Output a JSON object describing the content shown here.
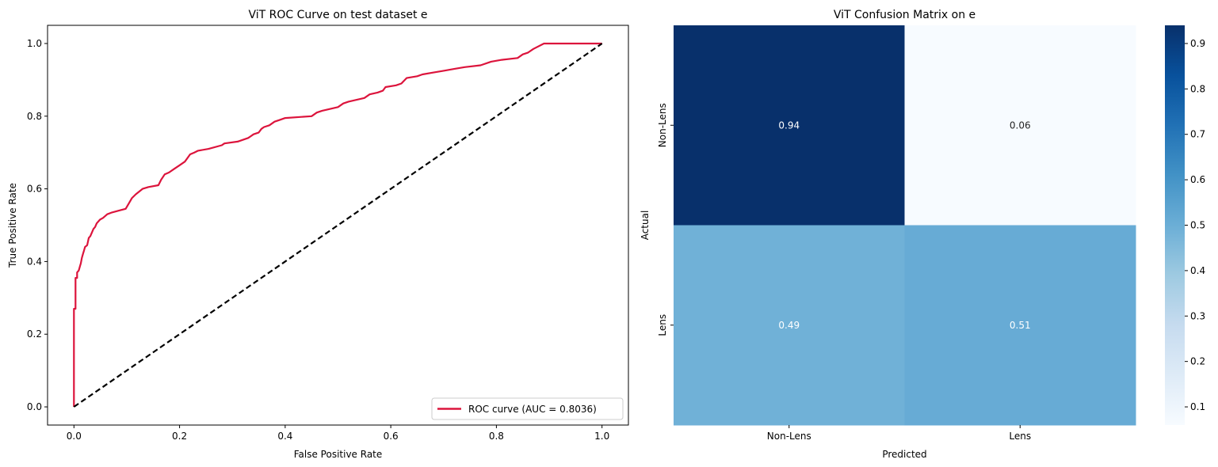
{
  "chart_data": [
    {
      "type": "line",
      "title": "ViT ROC Curve on test dataset e",
      "xlabel": "False Positive Rate",
      "ylabel": "True Positive Rate",
      "xlim": [
        -0.05,
        1.05
      ],
      "ylim": [
        -0.05,
        1.05
      ],
      "xticks": [
        0.0,
        0.2,
        0.4,
        0.6,
        0.8,
        1.0
      ],
      "yticks": [
        0.0,
        0.2,
        0.4,
        0.6,
        0.8,
        1.0
      ],
      "xtick_labels": [
        "0.0",
        "0.2",
        "0.4",
        "0.6",
        "0.8",
        "1.0"
      ],
      "ytick_labels": [
        "0.0",
        "0.2",
        "0.4",
        "0.6",
        "0.8",
        "1.0"
      ],
      "grid": false,
      "legend_position": "lower-right",
      "series": [
        {
          "name": "ROC curve (AUC = 0.8036)",
          "color": "#dc143c",
          "style": "solid",
          "x": [
            0.0,
            0.0,
            0.002,
            0.003,
            0.003,
            0.006,
            0.006,
            0.009,
            0.01,
            0.012,
            0.013,
            0.015,
            0.017,
            0.019,
            0.021,
            0.025,
            0.028,
            0.031,
            0.037,
            0.04,
            0.043,
            0.049,
            0.055,
            0.063,
            0.072,
            0.085,
            0.098,
            0.11,
            0.117,
            0.13,
            0.141,
            0.16,
            0.165,
            0.172,
            0.18,
            0.19,
            0.2,
            0.21,
            0.215,
            0.22,
            0.228,
            0.235,
            0.255,
            0.28,
            0.285,
            0.31,
            0.33,
            0.335,
            0.34,
            0.35,
            0.355,
            0.36,
            0.37,
            0.38,
            0.39,
            0.4,
            0.45,
            0.46,
            0.47,
            0.5,
            0.51,
            0.52,
            0.55,
            0.56,
            0.575,
            0.585,
            0.59,
            0.61,
            0.62,
            0.63,
            0.65,
            0.66,
            0.68,
            0.7,
            0.72,
            0.74,
            0.77,
            0.79,
            0.81,
            0.84,
            0.85,
            0.86,
            0.87,
            0.89,
            1.0
          ],
          "y": [
            0.0,
            0.27,
            0.27,
            0.27,
            0.355,
            0.355,
            0.37,
            0.375,
            0.38,
            0.39,
            0.395,
            0.41,
            0.42,
            0.43,
            0.44,
            0.445,
            0.465,
            0.47,
            0.49,
            0.495,
            0.505,
            0.515,
            0.52,
            0.53,
            0.535,
            0.54,
            0.545,
            0.575,
            0.585,
            0.6,
            0.605,
            0.61,
            0.625,
            0.64,
            0.645,
            0.655,
            0.665,
            0.675,
            0.685,
            0.695,
            0.7,
            0.705,
            0.71,
            0.72,
            0.725,
            0.73,
            0.74,
            0.745,
            0.75,
            0.755,
            0.765,
            0.77,
            0.775,
            0.785,
            0.79,
            0.795,
            0.8,
            0.81,
            0.815,
            0.825,
            0.835,
            0.84,
            0.85,
            0.86,
            0.865,
            0.87,
            0.88,
            0.885,
            0.89,
            0.905,
            0.91,
            0.915,
            0.92,
            0.925,
            0.93,
            0.935,
            0.94,
            0.95,
            0.955,
            0.96,
            0.97,
            0.975,
            0.985,
            1.0,
            1.0
          ]
        },
        {
          "name": "",
          "color": "#000000",
          "style": "dashed",
          "x": [
            0.0,
            1.0
          ],
          "y": [
            0.0,
            1.0
          ]
        }
      ]
    },
    {
      "type": "heatmap",
      "title": "ViT Confusion Matrix on e",
      "xlabel": "Predicted",
      "ylabel": "Actual",
      "x_categories": [
        "Non-Lens",
        "Lens"
      ],
      "y_categories": [
        "Non-Lens",
        "Lens"
      ],
      "values": [
        [
          0.94,
          0.06
        ],
        [
          0.49,
          0.51
        ]
      ],
      "annotations": [
        [
          "0.94",
          "0.06"
        ],
        [
          "0.49",
          "0.51"
        ]
      ],
      "colormap": "Blues",
      "colorbar": {
        "range": [
          0.06,
          0.94
        ],
        "ticks": [
          0.1,
          0.2,
          0.3,
          0.4,
          0.5,
          0.6,
          0.7,
          0.8,
          0.9
        ],
        "tick_labels": [
          "0.1",
          "0.2",
          "0.3",
          "0.4",
          "0.5",
          "0.6",
          "0.7",
          "0.8",
          "0.9"
        ]
      }
    }
  ]
}
